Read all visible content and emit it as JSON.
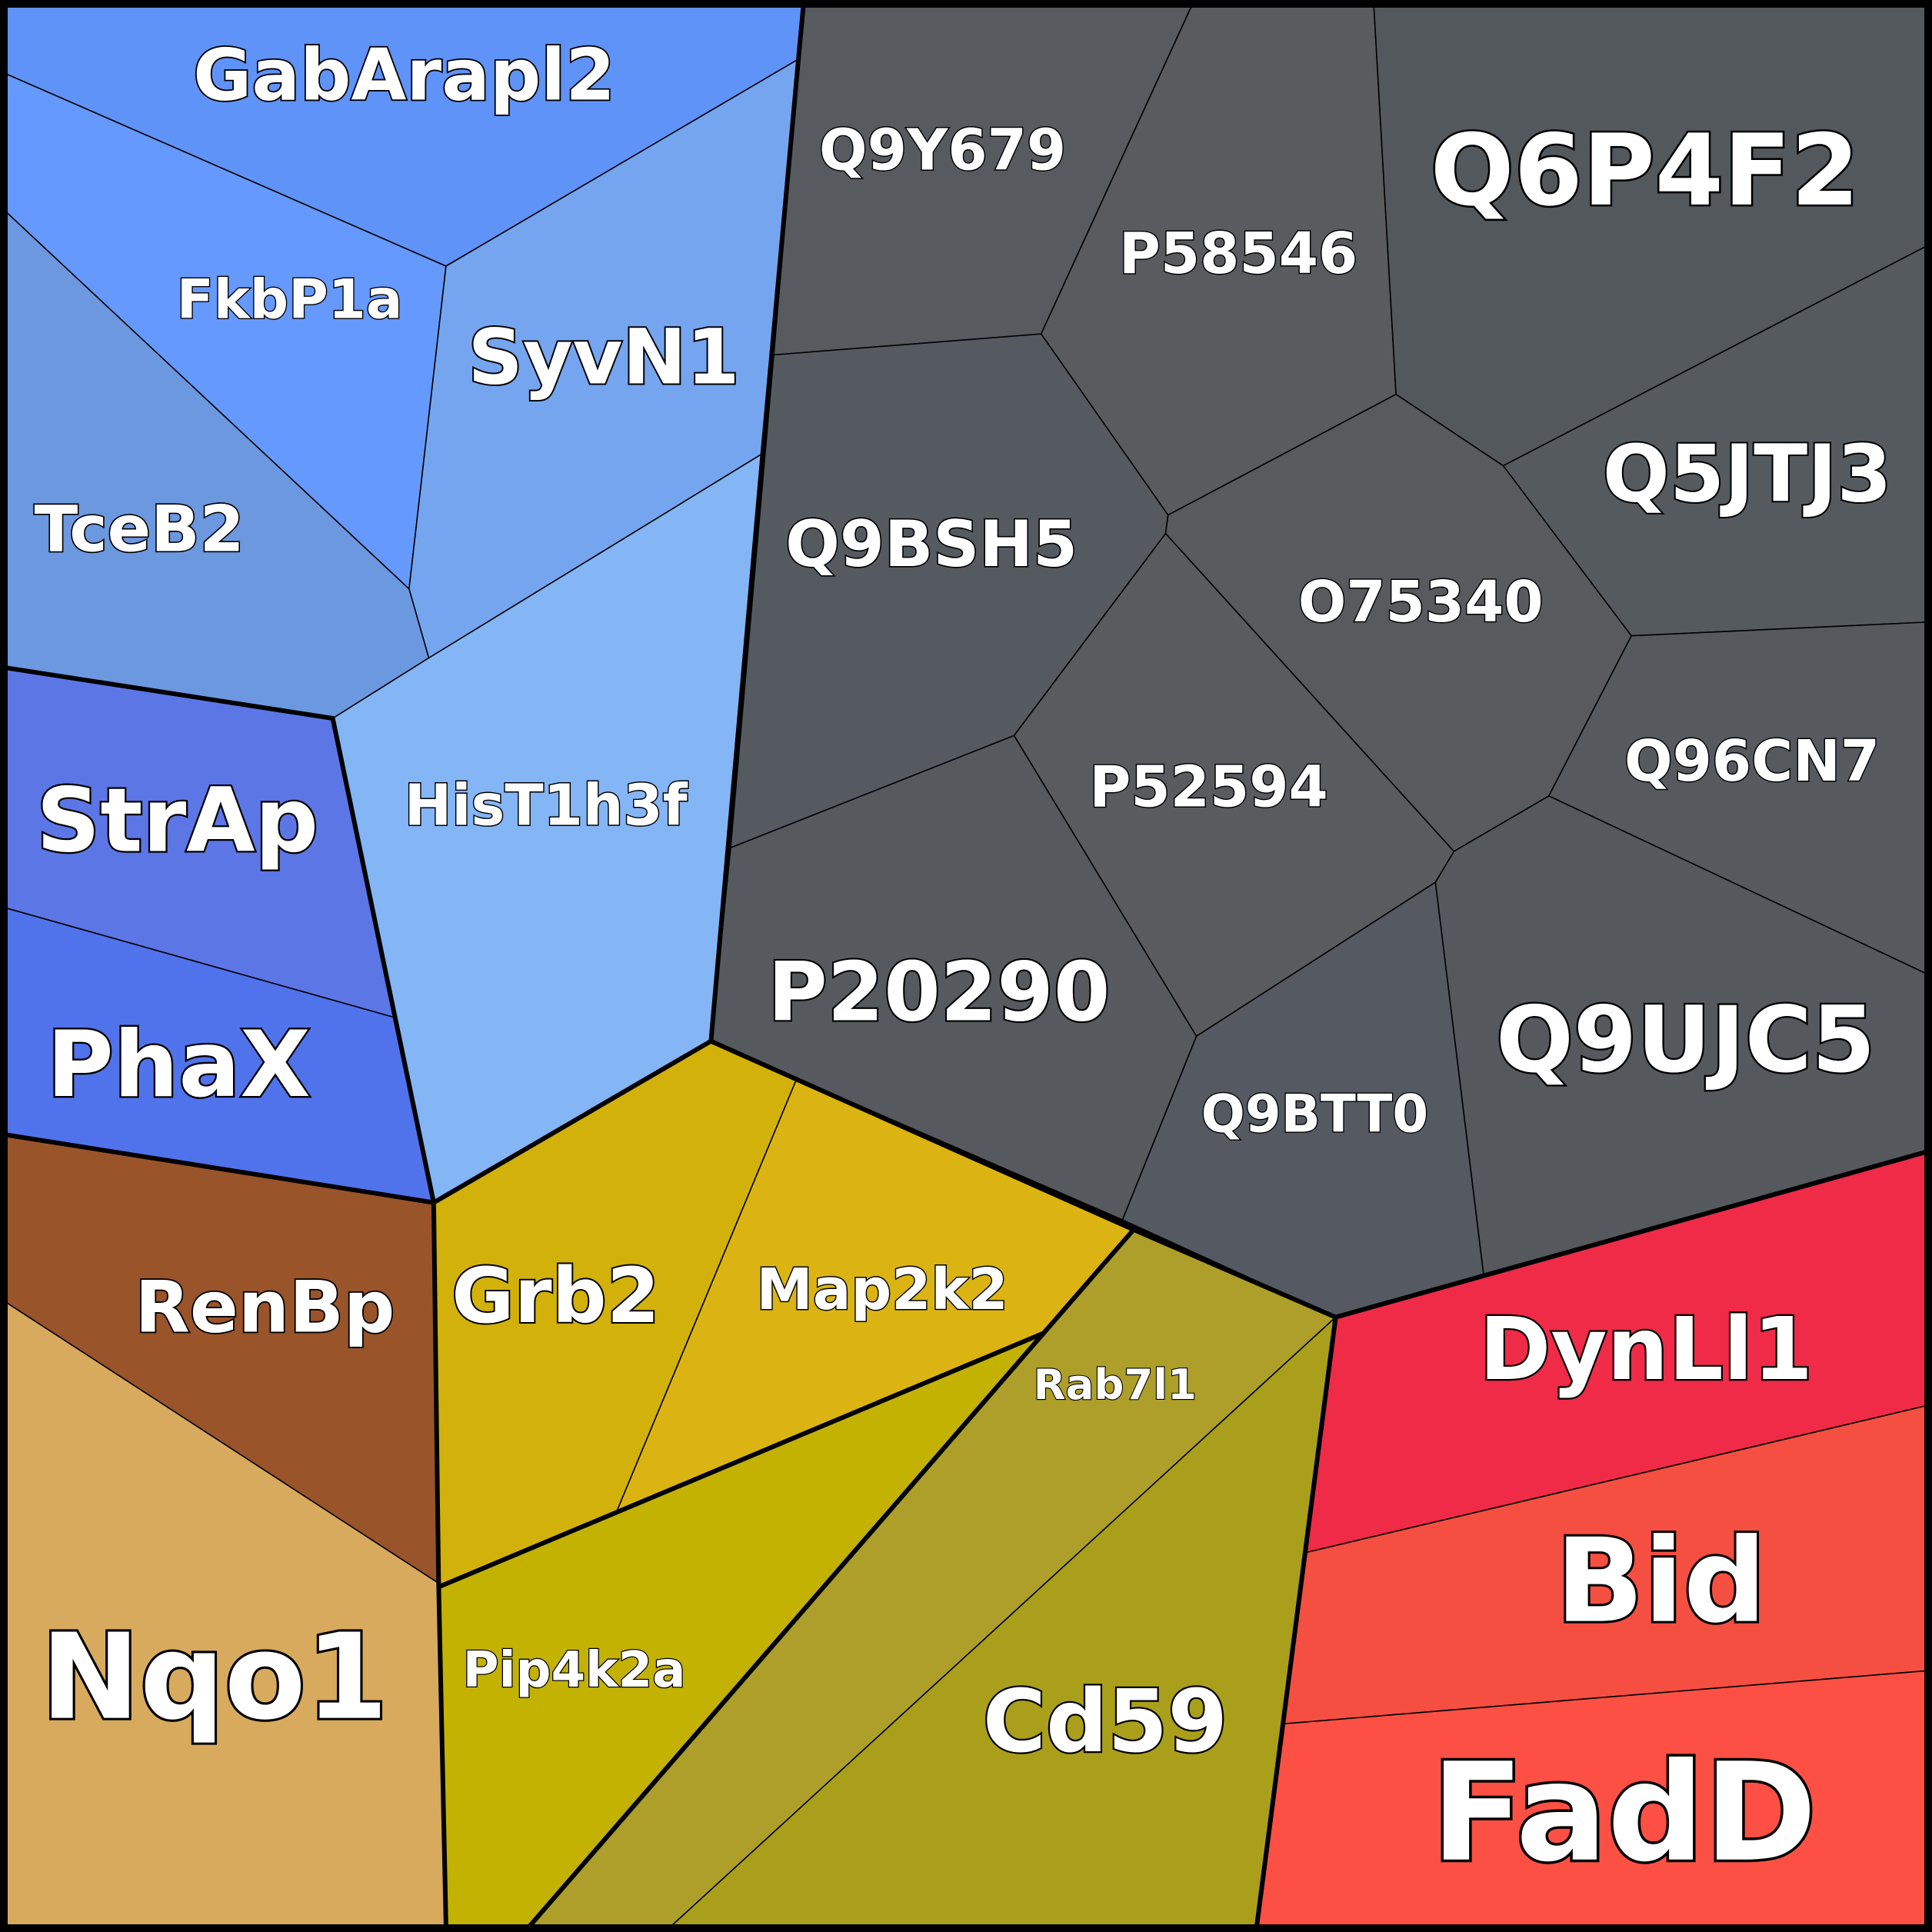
{
  "diagram": {
    "groups": {
      "blue": {
        "border_color": "#000000"
      },
      "gray": {
        "border_color": "#000000"
      },
      "yellow": {
        "border_color": "#000000"
      },
      "brown": {
        "border_color": "#000000"
      },
      "red": {
        "border_color": "#000000"
      }
    },
    "cells": [
      {
        "id": "gabarapl2",
        "label": "GabArapl2",
        "group": "blue",
        "color": "#5f93f8"
      },
      {
        "id": "fkbp1a",
        "label": "FkbP1a",
        "group": "blue",
        "color": "#6599fd"
      },
      {
        "id": "syvn1",
        "label": "SyvN1",
        "group": "blue",
        "color": "#75a5ef"
      },
      {
        "id": "tceb2",
        "label": "TceB2",
        "group": "blue",
        "color": "#6c98e0"
      },
      {
        "id": "hist1h3f",
        "label": "HisT1h3f",
        "group": "blue",
        "color": "#84b5f5"
      },
      {
        "id": "strap",
        "label": "StrAp",
        "group": "blue",
        "color": "#5c76e6"
      },
      {
        "id": "phax",
        "label": "PhaX",
        "group": "blue",
        "color": "#5073ec"
      },
      {
        "id": "q9y679",
        "label": "Q9Y679",
        "group": "gray",
        "color": "#575a5e"
      },
      {
        "id": "p58546",
        "label": "P58546",
        "group": "gray",
        "color": "#595b5e"
      },
      {
        "id": "q6p4f2",
        "label": "Q6P4F2",
        "group": "gray",
        "color": "#53585c"
      },
      {
        "id": "q9bsh5",
        "label": "Q9BSH5",
        "group": "gray",
        "color": "#555a60"
      },
      {
        "id": "q5jtj3",
        "label": "Q5JTJ3",
        "group": "gray",
        "color": "#555a5f"
      },
      {
        "id": "o75340",
        "label": "O75340",
        "group": "gray",
        "color": "#585a5e"
      },
      {
        "id": "p52594",
        "label": "P52594",
        "group": "gray",
        "color": "#5a5b5f"
      },
      {
        "id": "q96cn7",
        "label": "Q96CN7",
        "group": "gray",
        "color": "#565a5e"
      },
      {
        "id": "p20290",
        "label": "P20290",
        "group": "gray",
        "color": "#56595d"
      },
      {
        "id": "q9btt0",
        "label": "Q9BTT0",
        "group": "gray",
        "color": "#545962"
      },
      {
        "id": "q9ujc5",
        "label": "Q9UJC5",
        "group": "gray",
        "color": "#55595e"
      },
      {
        "id": "renbp",
        "label": "RenBp",
        "group": "brown",
        "color": "#9a542a"
      },
      {
        "id": "nqo1",
        "label": "Nqo1",
        "group": "brown",
        "color": "#d8aa5e"
      },
      {
        "id": "grb2",
        "label": "Grb2",
        "group": "yellow",
        "color": "#d2b10b"
      },
      {
        "id": "map2k2",
        "label": "Map2k2",
        "group": "yellow",
        "color": "#dbb413"
      },
      {
        "id": "pip4k2a",
        "label": "Pip4k2a",
        "group": "yellow",
        "color": "#c4b203"
      },
      {
        "id": "rab7l1",
        "label": "Rab7l1",
        "group": "yellow",
        "color": "#ad9f29"
      },
      {
        "id": "cd59",
        "label": "Cd59",
        "group": "yellow",
        "color": "#aa9f1b"
      },
      {
        "id": "dynll1",
        "label": "DynLl1",
        "group": "red",
        "color": "#ef2b47"
      },
      {
        "id": "bid",
        "label": "Bid",
        "group": "red",
        "color": "#f44f41"
      },
      {
        "id": "fadd",
        "label": "FadD",
        "group": "red",
        "color": "#fc5044"
      }
    ]
  }
}
